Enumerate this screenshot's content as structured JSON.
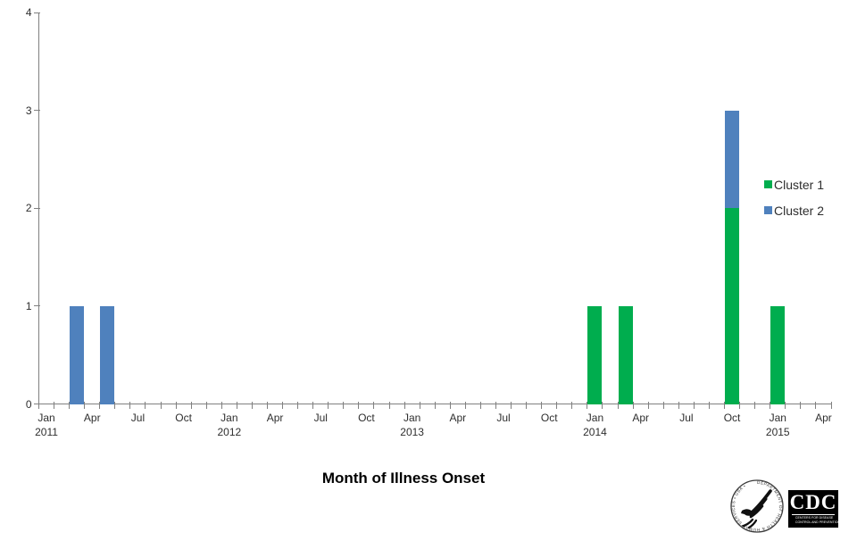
{
  "chart_data": {
    "type": "bar",
    "stacked": true,
    "title": "",
    "xlabel": "Month of Illness Onset",
    "ylabel": "",
    "ylim": [
      0,
      4
    ],
    "grid": false,
    "y_ticks": [
      "0",
      "1",
      "2",
      "3",
      "4"
    ],
    "x_range": {
      "start": "Jan 2011",
      "end": "Apr 2015",
      "months": 52
    },
    "x_tick_labels": [
      {
        "slot": 0,
        "month": "Jan",
        "year": "2011"
      },
      {
        "slot": 3,
        "month": "Apr"
      },
      {
        "slot": 6,
        "month": "Jul"
      },
      {
        "slot": 9,
        "month": "Oct"
      },
      {
        "slot": 12,
        "month": "Jan",
        "year": "2012"
      },
      {
        "slot": 15,
        "month": "Apr"
      },
      {
        "slot": 18,
        "month": "Jul"
      },
      {
        "slot": 21,
        "month": "Oct"
      },
      {
        "slot": 24,
        "month": "Jan",
        "year": "2013"
      },
      {
        "slot": 27,
        "month": "Apr"
      },
      {
        "slot": 30,
        "month": "Jul"
      },
      {
        "slot": 33,
        "month": "Oct"
      },
      {
        "slot": 36,
        "month": "Jan",
        "year": "2014"
      },
      {
        "slot": 39,
        "month": "Apr"
      },
      {
        "slot": 42,
        "month": "Jul"
      },
      {
        "slot": 45,
        "month": "Oct"
      },
      {
        "slot": 48,
        "month": "Jan",
        "year": "2015"
      },
      {
        "slot": 51,
        "month": "Apr"
      }
    ],
    "series": [
      {
        "name": "Cluster 1",
        "color": "#00AD4E",
        "points": [
          {
            "month": "Jan 2014",
            "value": 1
          },
          {
            "month": "Mar 2014",
            "value": 1
          },
          {
            "month": "Oct 2014",
            "value": 2
          },
          {
            "month": "Jan 2015",
            "value": 1
          }
        ]
      },
      {
        "name": "Cluster 2",
        "color": "#4F81BD",
        "points": [
          {
            "month": "Mar 2011",
            "value": 1
          },
          {
            "month": "May 2011",
            "value": 1
          },
          {
            "month": "Oct 2014",
            "value": 1
          }
        ]
      }
    ],
    "bars": [
      {
        "slot": 2,
        "month": "Mar 2011",
        "segments": [
          {
            "series": "Cluster 2",
            "value": 1
          }
        ]
      },
      {
        "slot": 4,
        "month": "May 2011",
        "segments": [
          {
            "series": "Cluster 2",
            "value": 1
          }
        ]
      },
      {
        "slot": 36,
        "month": "Jan 2014",
        "segments": [
          {
            "series": "Cluster 1",
            "value": 1
          }
        ]
      },
      {
        "slot": 38,
        "month": "Mar 2014",
        "segments": [
          {
            "series": "Cluster 1",
            "value": 1
          }
        ]
      },
      {
        "slot": 45,
        "month": "Oct 2014",
        "segments": [
          {
            "series": "Cluster 1",
            "value": 2
          },
          {
            "series": "Cluster 2",
            "value": 1
          }
        ]
      },
      {
        "slot": 48,
        "month": "Jan 2015",
        "segments": [
          {
            "series": "Cluster 1",
            "value": 1
          }
        ]
      }
    ],
    "legend": {
      "position": "right-middle",
      "items": [
        "Cluster 1",
        "Cluster 2"
      ]
    }
  },
  "footer": {
    "axis_title": "Month of Illness Onset",
    "hhs_seal_text": "DEPARTMENT OF HEALTH & HUMAN SERVICES • USA •",
    "cdc_logo": {
      "acronym": "CDC",
      "line1": "CENTERS FOR DISEASE",
      "line2": "CONTROL AND PREVENTION"
    }
  }
}
